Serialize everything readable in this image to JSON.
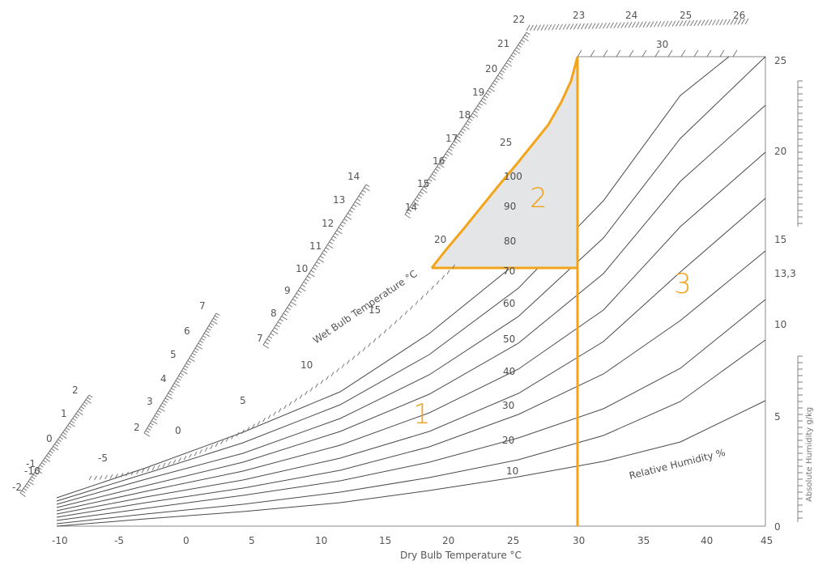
{
  "chart_data": {
    "type": "psychrometric",
    "x_axis": {
      "title": "Dry Bulb Temperature °C",
      "ticks": [
        "-10",
        "-5",
        "0",
        "5",
        "10",
        "15",
        "20",
        "25",
        "30",
        "35",
        "40",
        "45"
      ]
    },
    "right_axis": {
      "title": "Absolute Humidity g/kg",
      "ticks": [
        "0",
        "5",
        "10",
        "13,3",
        "15",
        "20",
        "25"
      ]
    },
    "wet_bulb_axis": {
      "title": "Wet Bulb Temperature °C",
      "top_ticks": [
        "22",
        "23",
        "24",
        "25",
        "26"
      ],
      "top_inner_ticks": [
        "30"
      ],
      "left_ticks": [
        "-2",
        "-1",
        "0",
        "1",
        "2",
        "2",
        "3",
        "4",
        "5",
        "6",
        "7",
        "7",
        "8",
        "9",
        "10",
        "11",
        "12",
        "13",
        "14",
        "14",
        "15",
        "16",
        "17",
        "18",
        "19",
        "20",
        "21"
      ],
      "curve_ticks": [
        "-10",
        "-5",
        "0",
        "5",
        "10",
        "15",
        "20",
        "25"
      ]
    },
    "relative_humidity_labels": [
      "10",
      "20",
      "30",
      "40",
      "50",
      "60",
      "70",
      "80",
      "90",
      "100"
    ],
    "relative_humidity_title": "Relative Humidity %",
    "zones": [
      "1",
      "2",
      "3"
    ]
  }
}
